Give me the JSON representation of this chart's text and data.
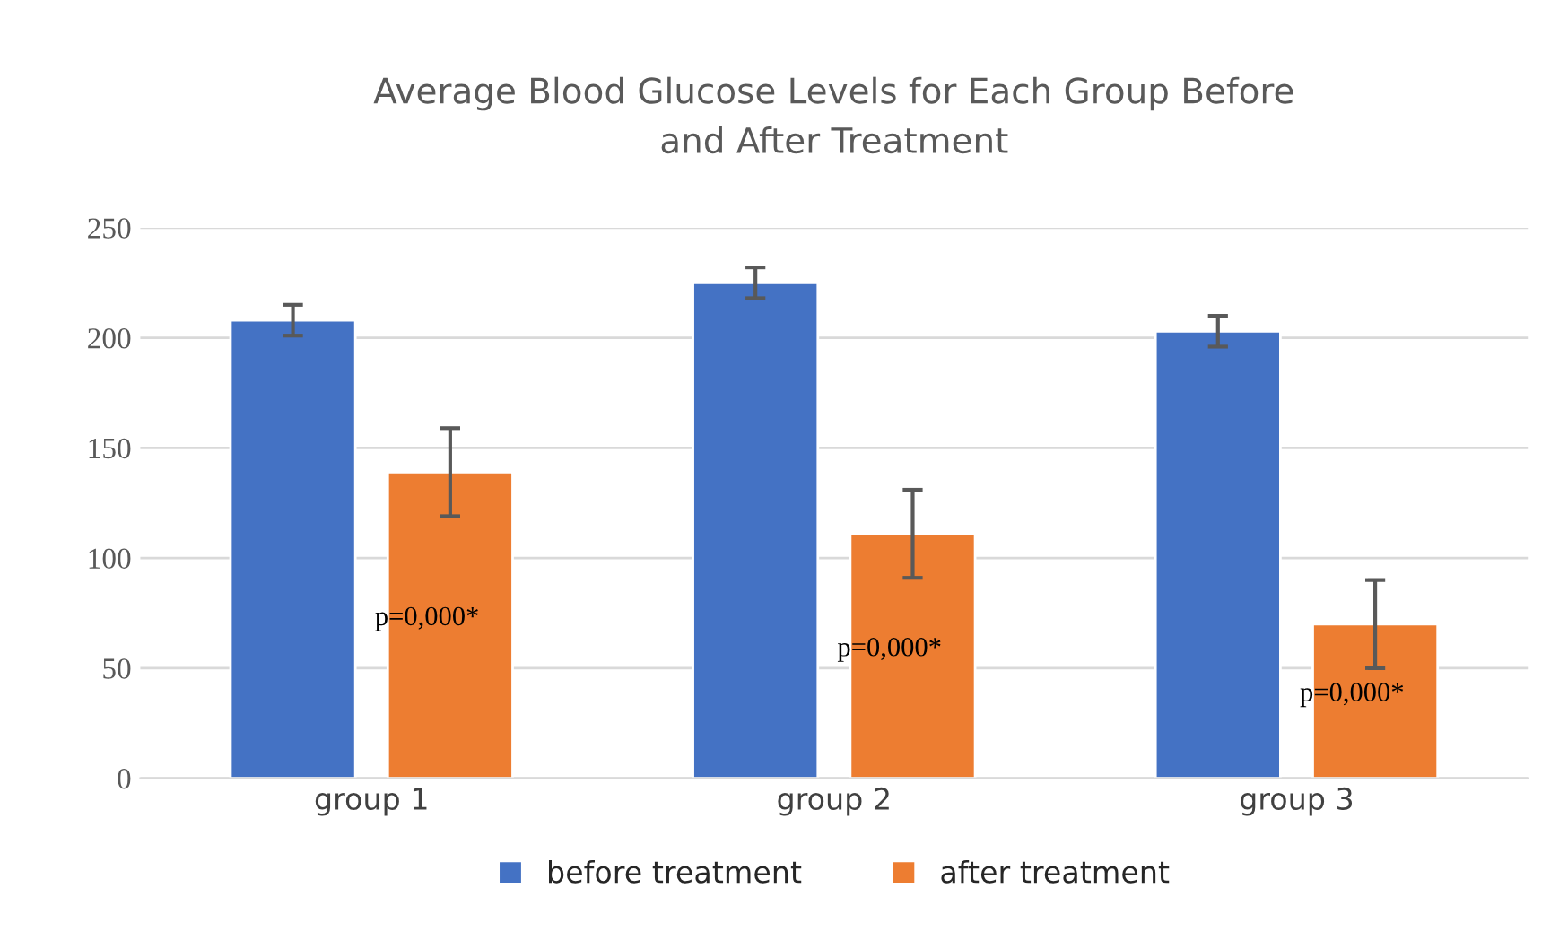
{
  "chart_data": {
    "type": "bar",
    "title": "Average Blood Glucose Levels for Each Group Before\nand After Treatment",
    "categories": [
      "group 1",
      "group 2",
      "group 3"
    ],
    "series": [
      {
        "name": "before treatment",
        "color": "#4472c4",
        "values": [
          208,
          225,
          203
        ],
        "errors": [
          7,
          7,
          7
        ]
      },
      {
        "name": "after treatment",
        "color": "#ed7d31",
        "values": [
          139,
          111,
          70
        ],
        "errors": [
          20,
          20,
          20
        ]
      }
    ],
    "ylim": [
      0,
      250
    ],
    "yticks": [
      0,
      50,
      100,
      150,
      200,
      250
    ],
    "grid": "y",
    "legend": "bottom",
    "annotations": [
      "p=0,000*",
      "p=0,000*",
      "p=0,000*"
    ]
  }
}
